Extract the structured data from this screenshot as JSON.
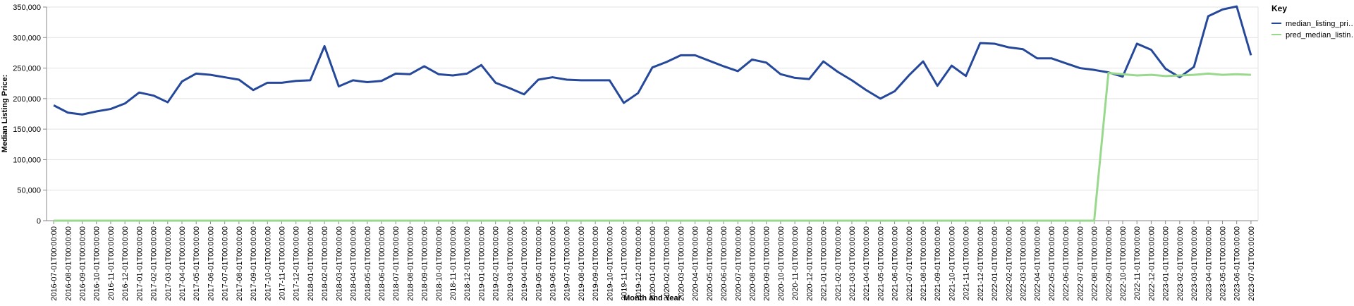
{
  "chart_data": {
    "type": "line",
    "x_label": "Month and Year",
    "y_label": "Median Listing Price:",
    "legend_title": "Key",
    "legend": "right",
    "grid": true,
    "categories": [
      "2016-07-01T00:00:00",
      "2016-08-01T00:00:00",
      "2016-09-01T00:00:00",
      "2016-10-01T00:00:00",
      "2016-11-01T00:00:00",
      "2016-12-01T00:00:00",
      "2017-01-01T00:00:00",
      "2017-02-01T00:00:00",
      "2017-03-01T00:00:00",
      "2017-04-01T00:00:00",
      "2017-05-01T00:00:00",
      "2017-06-01T00:00:00",
      "2017-07-01T00:00:00",
      "2017-08-01T00:00:00",
      "2017-09-01T00:00:00",
      "2017-10-01T00:00:00",
      "2017-11-01T00:00:00",
      "2017-12-01T00:00:00",
      "2018-01-01T00:00:00",
      "2018-02-01T00:00:00",
      "2018-03-01T00:00:00",
      "2018-04-01T00:00:00",
      "2018-05-01T00:00:00",
      "2018-06-01T00:00:00",
      "2018-07-01T00:00:00",
      "2018-08-01T00:00:00",
      "2018-09-01T00:00:00",
      "2018-10-01T00:00:00",
      "2018-11-01T00:00:00",
      "2018-12-01T00:00:00",
      "2019-01-01T00:00:00",
      "2019-02-01T00:00:00",
      "2019-03-01T00:00:00",
      "2019-04-01T00:00:00",
      "2019-05-01T00:00:00",
      "2019-06-01T00:00:00",
      "2019-07-01T00:00:00",
      "2019-08-01T00:00:00",
      "2019-09-01T00:00:00",
      "2019-10-01T00:00:00",
      "2019-11-01T00:00:00",
      "2019-12-01T00:00:00",
      "2020-01-01T00:00:00",
      "2020-02-01T00:00:00",
      "2020-03-01T00:00:00",
      "2020-04-01T00:00:00",
      "2020-05-01T00:00:00",
      "2020-06-01T00:00:00",
      "2020-07-01T00:00:00",
      "2020-08-01T00:00:00",
      "2020-09-01T00:00:00",
      "2020-10-01T00:00:00",
      "2020-11-01T00:00:00",
      "2020-12-01T00:00:00",
      "2021-01-01T00:00:00",
      "2021-02-01T00:00:00",
      "2021-03-01T00:00:00",
      "2021-04-01T00:00:00",
      "2021-05-01T00:00:00",
      "2021-06-01T00:00:00",
      "2021-07-01T00:00:00",
      "2021-08-01T00:00:00",
      "2021-09-01T00:00:00",
      "2021-10-01T00:00:00",
      "2021-11-01T00:00:00",
      "2021-12-01T00:00:00",
      "2022-01-01T00:00:00",
      "2022-02-01T00:00:00",
      "2022-03-01T00:00:00",
      "2022-04-01T00:00:00",
      "2022-05-01T00:00:00",
      "2022-06-01T00:00:00",
      "2022-07-01T00:00:00",
      "2022-08-01T00:00:00",
      "2022-09-01T00:00:00",
      "2022-10-01T00:00:00",
      "2022-11-01T00:00:00",
      "2022-12-01T00:00:00",
      "2023-01-01T00:00:00",
      "2023-02-01T00:00:00",
      "2023-03-01T00:00:00",
      "2023-04-01T00:00:00",
      "2023-05-01T00:00:00",
      "2023-06-01T00:00:00",
      "2023-07-01T00:00:00"
    ],
    "series": [
      {
        "name": "median_listing_pri…",
        "color": "#25489a",
        "values": [
          189000,
          177000,
          174000,
          179000,
          183000,
          192000,
          210000,
          205000,
          194000,
          228000,
          241000,
          239000,
          235000,
          231000,
          214000,
          226000,
          226000,
          229000,
          230000,
          286000,
          220000,
          230000,
          227000,
          229000,
          241000,
          240000,
          253000,
          240000,
          238000,
          241000,
          255000,
          226000,
          217000,
          207000,
          231000,
          235000,
          231000,
          230000,
          230000,
          230000,
          193000,
          209000,
          251000,
          260000,
          271000,
          271000,
          262000,
          253000,
          245000,
          264000,
          259000,
          240000,
          234000,
          232000,
          261000,
          244000,
          230000,
          214000,
          200000,
          212000,
          238000,
          261000,
          221000,
          254000,
          237000,
          291000,
          290000,
          284000,
          281000,
          266000,
          266000,
          258000,
          250000,
          247000,
          243000,
          236000,
          290000,
          280000,
          249000,
          235000,
          252000,
          335000,
          346000,
          351000,
          271000
        ]
      },
      {
        "name": "pred_median_listin…",
        "color": "#98d98e",
        "values": [
          0,
          0,
          0,
          0,
          0,
          0,
          0,
          0,
          0,
          0,
          0,
          0,
          0,
          0,
          0,
          0,
          0,
          0,
          0,
          0,
          0,
          0,
          0,
          0,
          0,
          0,
          0,
          0,
          0,
          0,
          0,
          0,
          0,
          0,
          0,
          0,
          0,
          0,
          0,
          0,
          0,
          0,
          0,
          0,
          0,
          0,
          0,
          0,
          0,
          0,
          0,
          0,
          0,
          0,
          0,
          0,
          0,
          0,
          0,
          0,
          0,
          0,
          0,
          0,
          0,
          0,
          0,
          0,
          0,
          0,
          0,
          0,
          0,
          0,
          242000,
          240000,
          238000,
          239000,
          237000,
          238000,
          239000,
          241000,
          239000,
          240000,
          239000
        ]
      }
    ],
    "ylim": [
      0,
      350000
    ],
    "yticks": [
      0,
      {
        "value": 50000,
        "label": "50,000"
      },
      {
        "value": 100000,
        "label": "100,000"
      },
      {
        "value": 150000,
        "label": "150,000"
      },
      {
        "value": 200000,
        "label": "200,000"
      },
      {
        "value": 250000,
        "label": "250,000"
      },
      {
        "value": 300000,
        "label": "300,000"
      },
      {
        "value": 350000,
        "label": "350,000"
      }
    ]
  }
}
